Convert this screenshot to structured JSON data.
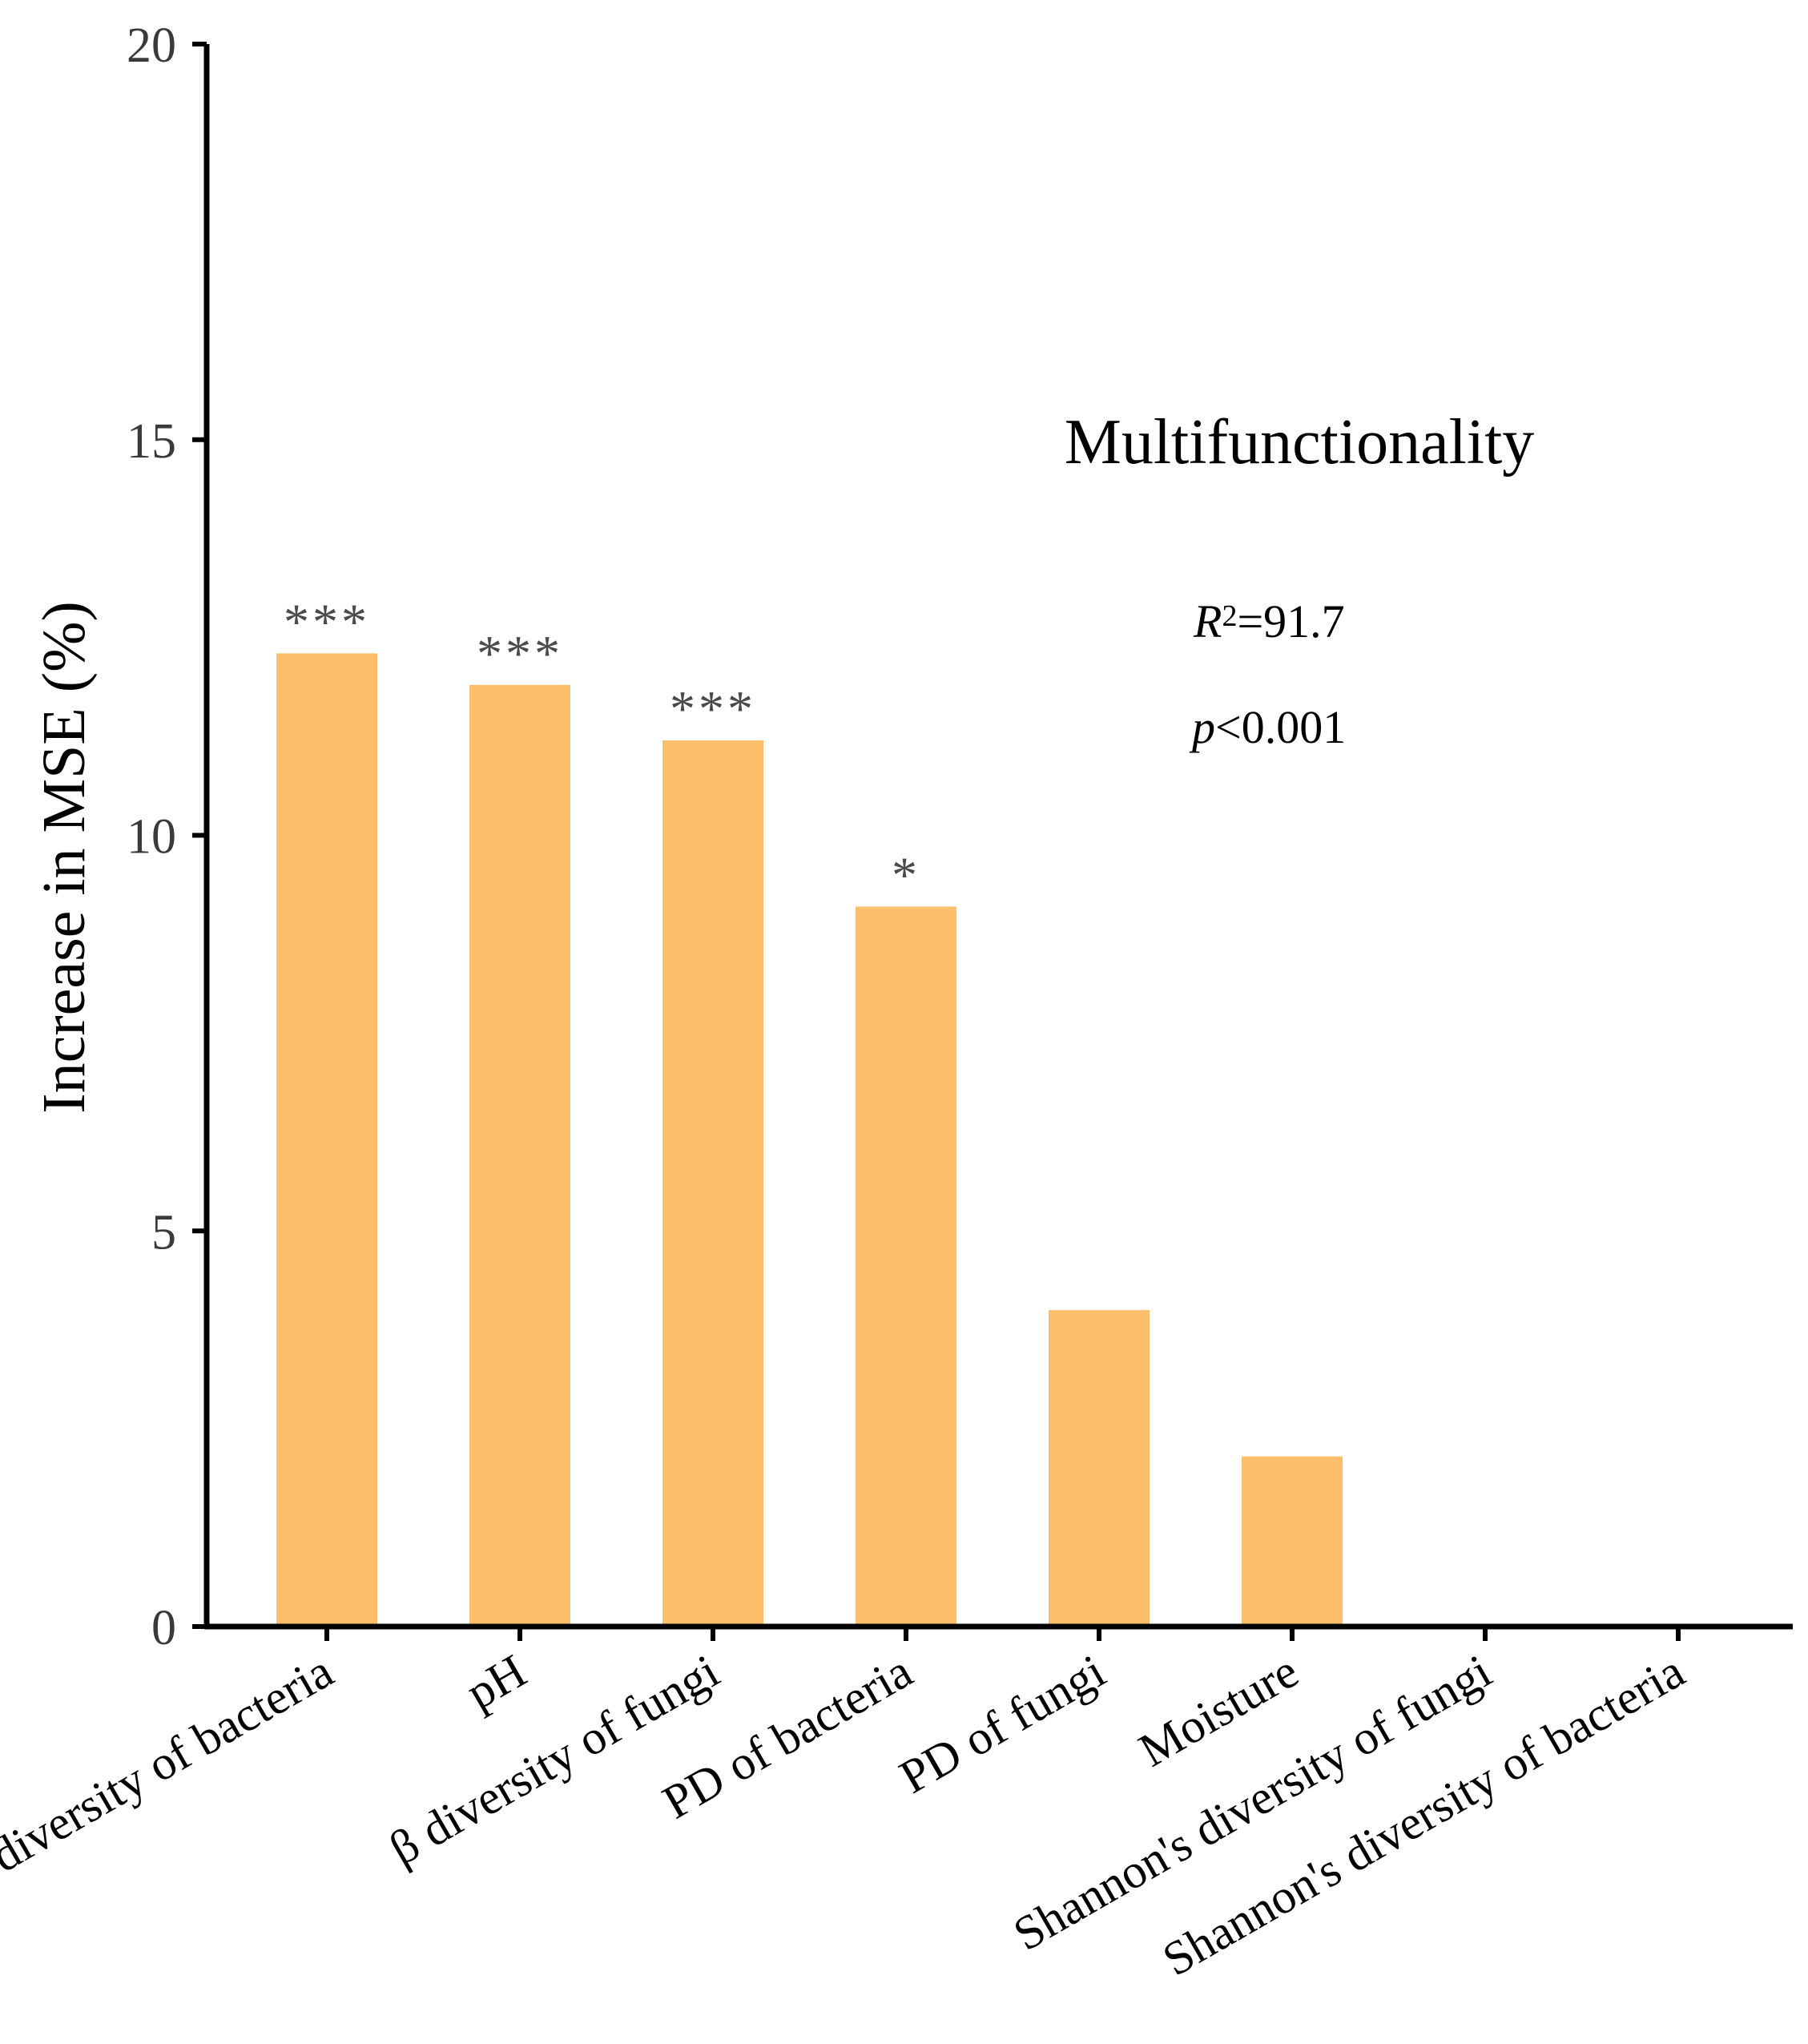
{
  "chart_data": {
    "type": "bar",
    "title": "Multifunctionality",
    "ylabel": "Increase in MSE (%)",
    "xlabel": "",
    "ylim": [
      0,
      20
    ],
    "yticks": [
      0,
      5,
      10,
      15,
      20
    ],
    "categories": [
      "β diversity of bacteria",
      "pH",
      "β diversity of fungi",
      "PD of bacteria",
      "PD of fungi",
      "Moisture",
      "Shannon's diversity of fungi",
      "Shannon's diversity of bacteria"
    ],
    "values": [
      12.3,
      11.9,
      11.2,
      9.1,
      4.0,
      2.15,
      0,
      0
    ],
    "significance": [
      "***",
      "***",
      "***",
      "*",
      "",
      "",
      "",
      ""
    ],
    "bar_color": "#FDBF6B",
    "axis_color": "#000000",
    "stats": {
      "r2_symbol": "R",
      "r2_sup": "2",
      "r2_value": "=91.7",
      "p_symbol": "p",
      "p_value": "<0.001"
    }
  }
}
